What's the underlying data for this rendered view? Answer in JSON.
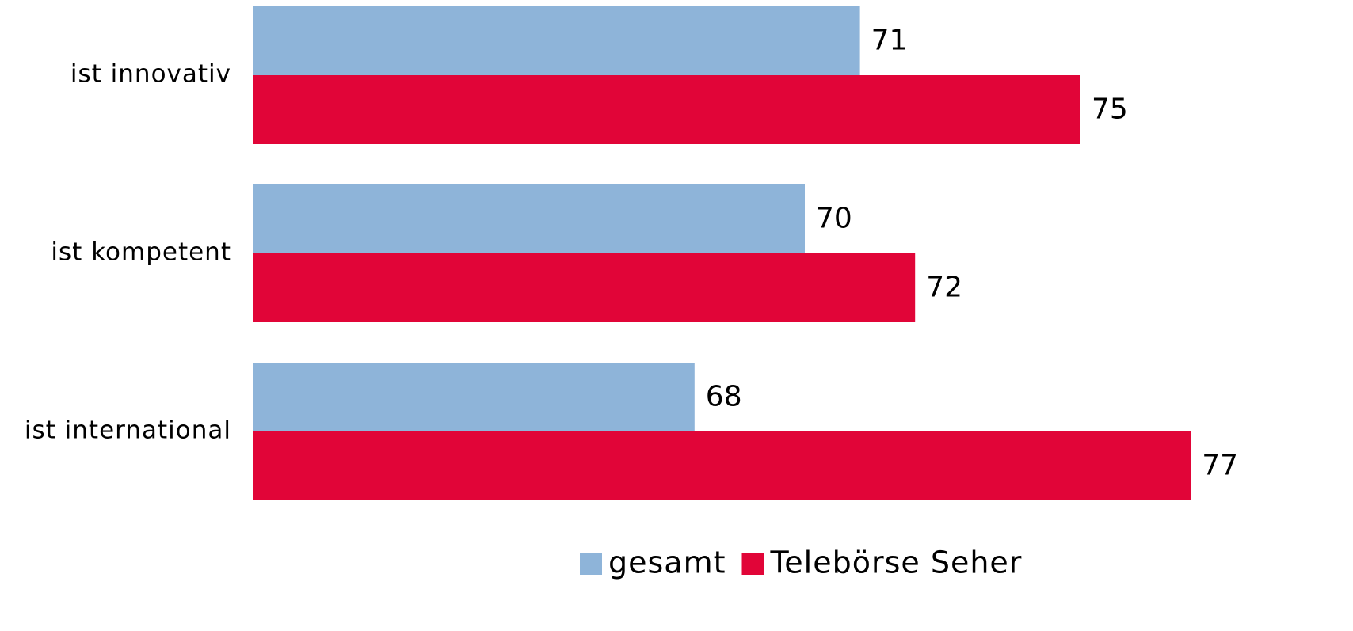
{
  "chart_data": {
    "type": "hbar",
    "categories": [
      "ist innovativ",
      "ist kompetent",
      "ist international"
    ],
    "series": [
      {
        "name": "gesamt",
        "color": "#8eb4d9",
        "values": [
          71,
          70,
          68
        ]
      },
      {
        "name": "Telebörse Seher",
        "color": "#e10538",
        "values": [
          75,
          72,
          77
        ]
      }
    ],
    "xlim": [
      60,
      80
    ]
  }
}
